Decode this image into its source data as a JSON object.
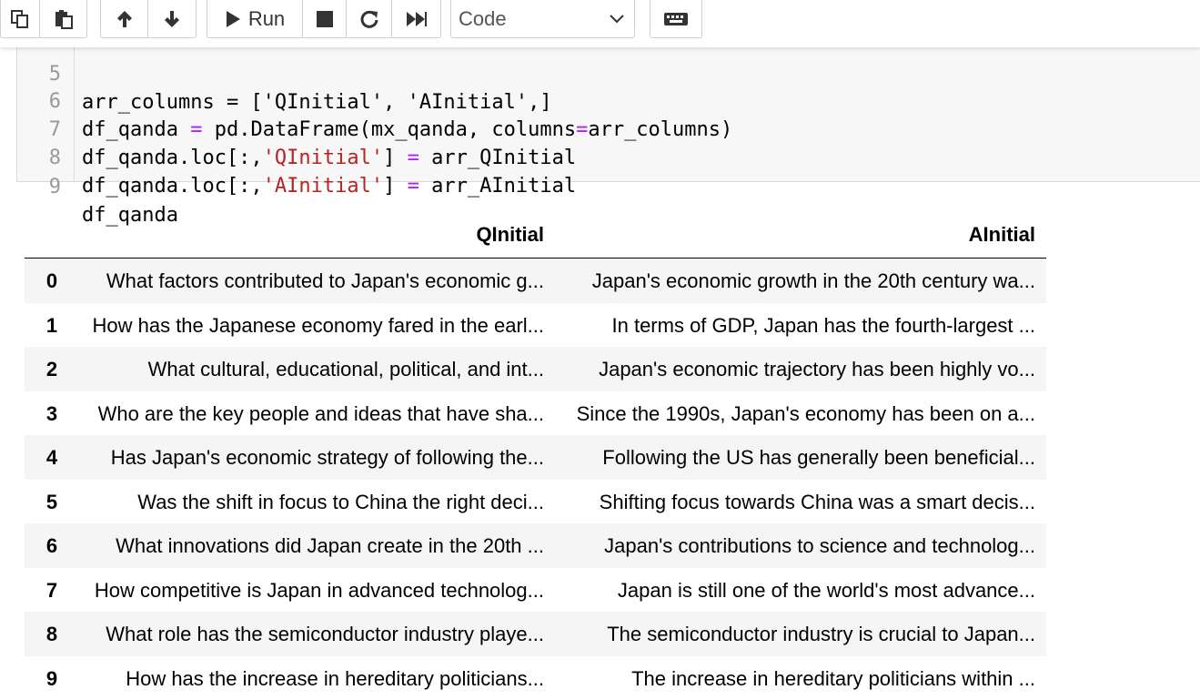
{
  "toolbar": {
    "run_label": "Run",
    "cell_type": "Code",
    "icons": [
      "copy-icon",
      "paste-icon",
      "move-up-icon",
      "move-down-icon",
      "run-icon",
      "stop-icon",
      "restart-icon",
      "fast-forward-icon",
      "chevron-down-icon",
      "keyboard-icon"
    ]
  },
  "code": {
    "line5": {
      "no": "5",
      "text": "arr_columns = ['QInitial', 'AInitial',]"
    },
    "line6": {
      "no": "6",
      "a": "df_qanda ",
      "op": "=",
      "b": " pd.DataFrame(mx_qanda, columns",
      "op2": "=",
      "c": "arr_columns)"
    },
    "line7": {
      "no": "7",
      "a": "df_qanda.loc[:,",
      "s": "'QInitial'",
      "b": "] ",
      "op": "=",
      "c": " arr_QInitial"
    },
    "line8": {
      "no": "8",
      "a": "df_qanda.loc[:,",
      "s": "'AInitial'",
      "b": "] ",
      "op": "=",
      "c": " arr_AInitial"
    },
    "line9": {
      "no": "9",
      "text": "df_qanda"
    }
  },
  "table": {
    "columns": [
      "QInitial",
      "AInitial"
    ],
    "rows": [
      {
        "index": "0",
        "q": "What factors contributed to Japan's economic g...",
        "a": "Japan's economic growth in the 20th century wa..."
      },
      {
        "index": "1",
        "q": "How has the Japanese economy fared in the earl...",
        "a": "In terms of GDP, Japan has the fourth-largest ..."
      },
      {
        "index": "2",
        "q": "What cultural, educational, political, and int...",
        "a": "Japan's economic trajectory has been highly vo..."
      },
      {
        "index": "3",
        "q": "Who are the key people and ideas that have sha...",
        "a": "Since the 1990s, Japan's economy has been on a..."
      },
      {
        "index": "4",
        "q": "Has Japan's economic strategy of following the...",
        "a": "Following the US has generally been beneficial..."
      },
      {
        "index": "5",
        "q": "Was the shift in focus to China the right deci...",
        "a": "Shifting focus towards China was a smart decis..."
      },
      {
        "index": "6",
        "q": "What innovations did Japan create in the 20th ...",
        "a": "Japan's contributions to science and technolog..."
      },
      {
        "index": "7",
        "q": "How competitive is Japan in advanced technolog...",
        "a": "Japan is still one of the world's most advance..."
      },
      {
        "index": "8",
        "q": "What role has the semiconductor industry playe...",
        "a": "The semiconductor industry is crucial to Japan..."
      },
      {
        "index": "9",
        "q": "How has the increase in hereditary politicians...",
        "a": "The increase in hereditary politicians within ..."
      }
    ]
  }
}
